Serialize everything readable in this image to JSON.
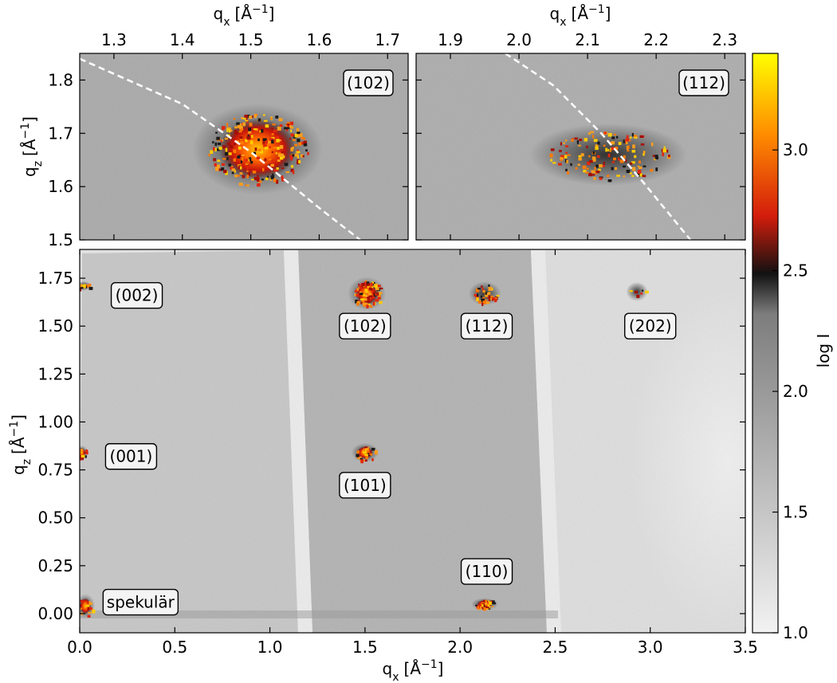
{
  "chart_data": [
    {
      "type": "heatmap",
      "panel": "top-left",
      "x_label": "q_x [Å^-1]",
      "y_label": "q_z [Å^-1]",
      "x_label_parts": {
        "base": "q",
        "sub": "x",
        "unit": "[Å",
        "sup": "−1",
        "close": "]"
      },
      "y_label_parts": {
        "base": "q",
        "sub": "z",
        "unit": "[Å",
        "sup": "−1",
        "close": "]"
      },
      "x_axis_position": "top",
      "xlim": [
        1.25,
        1.73
      ],
      "ylim": [
        1.5,
        1.85
      ],
      "x_ticks": [
        1.3,
        1.4,
        1.5,
        1.6,
        1.7
      ],
      "x_tick_labels": [
        "1.3",
        "1.4",
        "1.5",
        "1.6",
        "1.7"
      ],
      "y_ticks": [
        1.5,
        1.6,
        1.7,
        1.8
      ],
      "y_tick_labels": [
        "1.5",
        "1.6",
        "1.7",
        "1.8"
      ],
      "annotations": [
        {
          "text": "(102)",
          "position": "top-right"
        }
      ],
      "peaks": [
        {
          "label": "(102)",
          "qx": 1.51,
          "qz": 1.67
        }
      ],
      "dashed_curve": [
        [
          1.25,
          1.84
        ],
        [
          1.4,
          1.755
        ],
        [
          1.5,
          1.665
        ],
        [
          1.6,
          1.56
        ],
        [
          1.66,
          1.5
        ]
      ]
    },
    {
      "type": "heatmap",
      "panel": "top-right",
      "x_label": "q_x [Å^-1]",
      "x_label_parts": {
        "base": "q",
        "sub": "x",
        "unit": "[Å",
        "sup": "−1",
        "close": "]"
      },
      "x_axis_position": "top",
      "xlim": [
        1.85,
        2.33
      ],
      "ylim": [
        1.5,
        1.85
      ],
      "x_ticks": [
        1.9,
        2.0,
        2.1,
        2.2,
        2.3
      ],
      "x_tick_labels": [
        "1.9",
        "2.0",
        "2.1",
        "2.2",
        "2.3"
      ],
      "annotations": [
        {
          "text": "(112)",
          "position": "top-right"
        }
      ],
      "peaks": [
        {
          "label": "(112)",
          "qx": 2.13,
          "qz": 1.66
        }
      ],
      "dashed_curve": [
        [
          1.98,
          1.85
        ],
        [
          2.05,
          1.79
        ],
        [
          2.12,
          1.7
        ],
        [
          2.18,
          1.61
        ],
        [
          2.25,
          1.5
        ]
      ]
    },
    {
      "type": "heatmap",
      "panel": "bottom",
      "x_label": "q_x [Å^-1]",
      "y_label": "q_z [Å^-1]",
      "x_label_parts": {
        "base": "q",
        "sub": "x",
        "unit": "[Å",
        "sup": "−1",
        "close": "]"
      },
      "y_label_parts": {
        "base": "q",
        "sub": "z",
        "unit": "[Å",
        "sup": "−1",
        "close": "]"
      },
      "xlim": [
        0.0,
        3.5
      ],
      "ylim": [
        -0.1,
        1.9
      ],
      "x_ticks": [
        0.0,
        0.5,
        1.0,
        1.5,
        2.0,
        2.5,
        3.0,
        3.5
      ],
      "x_tick_labels": [
        "0.0",
        "0.5",
        "1.0",
        "1.5",
        "2.0",
        "2.5",
        "3.0",
        "3.5"
      ],
      "y_ticks": [
        0.0,
        0.25,
        0.5,
        0.75,
        1.0,
        1.25,
        1.5,
        1.75
      ],
      "y_tick_labels": [
        "0.00",
        "0.25",
        "0.50",
        "0.75",
        "1.00",
        "1.25",
        "1.50",
        "1.75"
      ],
      "annotations": [
        {
          "text": "(002)",
          "qx": 0.3,
          "qz": 1.66
        },
        {
          "text": "(102)",
          "qx": 1.5,
          "qz": 1.5
        },
        {
          "text": "(112)",
          "qx": 2.14,
          "qz": 1.5
        },
        {
          "text": "(202)",
          "qx": 3.0,
          "qz": 1.5
        },
        {
          "text": "(001)",
          "qx": 0.27,
          "qz": 0.82
        },
        {
          "text": "(101)",
          "qx": 1.5,
          "qz": 0.67
        },
        {
          "text": "(110)",
          "qx": 2.14,
          "qz": 0.22
        },
        {
          "text": "spekulär",
          "qx": 0.32,
          "qz": 0.06
        }
      ],
      "peaks": [
        {
          "label": "(002)",
          "qx": 0.02,
          "qz": 1.71
        },
        {
          "label": "(102)",
          "qx": 1.51,
          "qz": 1.67
        },
        {
          "label": "(112)",
          "qx": 2.13,
          "qz": 1.67
        },
        {
          "label": "(202)",
          "qx": 2.93,
          "qz": 1.68
        },
        {
          "label": "(001)",
          "qx": 0.01,
          "qz": 0.84
        },
        {
          "label": "(101)",
          "qx": 1.5,
          "qz": 0.84
        },
        {
          "label": "(110)",
          "qx": 2.13,
          "qz": 0.05
        },
        {
          "label": "spekulär",
          "qx": 0.03,
          "qz": 0.04
        }
      ]
    }
  ],
  "colorbar": {
    "label": "log I",
    "range": [
      1.0,
      3.4
    ],
    "ticks": [
      1.0,
      1.5,
      2.0,
      2.5,
      3.0
    ],
    "tick_labels": [
      "1.0",
      "1.5",
      "2.0",
      "2.5",
      "3.0"
    ],
    "colormap": [
      "#f2f2f2",
      "#7d7d7d",
      "#111111",
      "#d41d0c",
      "#ff8c00",
      "#ffff00"
    ]
  }
}
